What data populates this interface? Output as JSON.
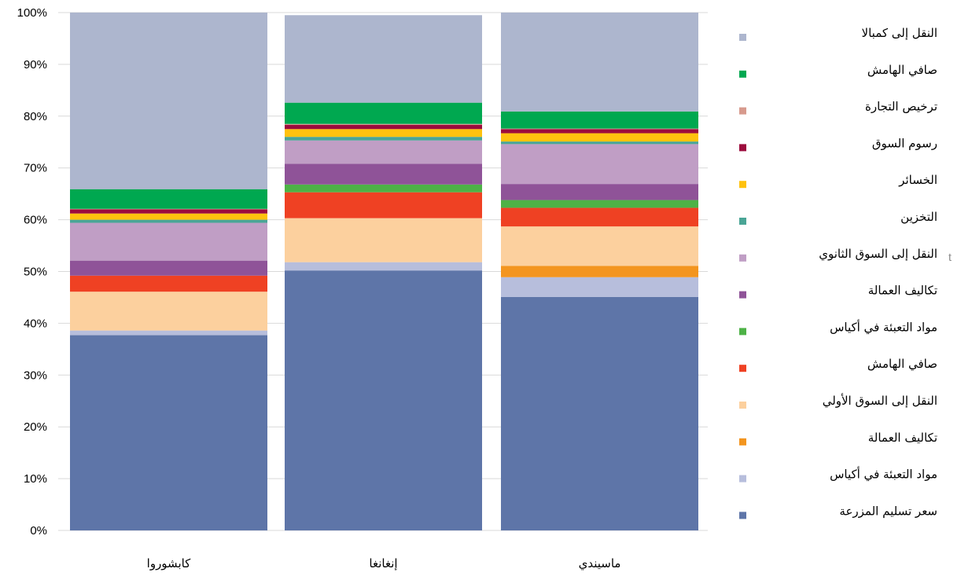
{
  "chart_data": {
    "type": "bar",
    "stacked": true,
    "percent": true,
    "title": "",
    "xlabel": "",
    "ylabel": "",
    "ylim": [
      0,
      100
    ],
    "y_ticks": [
      "0%",
      "10%",
      "20%",
      "30%",
      "40%",
      "50%",
      "60%",
      "70%",
      "80%",
      "90%",
      "100%"
    ],
    "grid": "horizontal",
    "legend_position": "right",
    "categories": [
      "كابشوروا",
      "إنغانغا",
      "ماسيندي"
    ],
    "series": [
      {
        "name": "سعر تسليم المزرعة",
        "color": "#5e75a8",
        "values": [
          37.7,
          50.2,
          45.1
        ]
      },
      {
        "name": "مواد التعبئة في أكياس",
        "color": "#b7bedc",
        "values": [
          0.9,
          1.6,
          3.8
        ]
      },
      {
        "name": "تكاليف العمالة",
        "color": "#f3951f",
        "values": [
          0,
          0,
          2.2
        ]
      },
      {
        "name": "النقل إلى السوق الأولي",
        "color": "#fcd09e",
        "values": [
          7.5,
          8.5,
          7.6
        ]
      },
      {
        "name": "صافي الهامش",
        "color": "#ef4123",
        "values": [
          3.1,
          5.0,
          3.6
        ]
      },
      {
        "name": "مواد التعبئة في أكياس",
        "color": "#4db246",
        "values": [
          0,
          1.5,
          1.5
        ]
      },
      {
        "name": "تكاليف العمالة",
        "color": "#8f5398",
        "values": [
          2.9,
          4.0,
          3.1
        ]
      },
      {
        "name": "النقل إلى السوق الثانوي",
        "color": "#c09ec5",
        "values": [
          7.3,
          4.5,
          7.7
        ]
      },
      {
        "name": "التخزين",
        "color": "#4aa596",
        "values": [
          0.6,
          0.7,
          0.5
        ]
      },
      {
        "name": "الخسائر",
        "color": "#ffc20e",
        "values": [
          1.2,
          1.5,
          1.6
        ]
      },
      {
        "name": "رسوم السوق",
        "color": "#9c0c3d",
        "values": [
          0.8,
          0.8,
          0.8
        ]
      },
      {
        "name": "ترخيص التجارة",
        "color": "#d79a8d",
        "values": [
          0.1,
          0.2,
          0.1
        ]
      },
      {
        "name": "صافي الهامش",
        "color": "#00a850",
        "values": [
          3.8,
          4.1,
          3.3
        ]
      },
      {
        "name": "النقل إلى كمبالا",
        "color": "#adb6ce",
        "values": [
          34.1,
          16.9,
          19.1
        ]
      }
    ],
    "annotation": "t"
  }
}
